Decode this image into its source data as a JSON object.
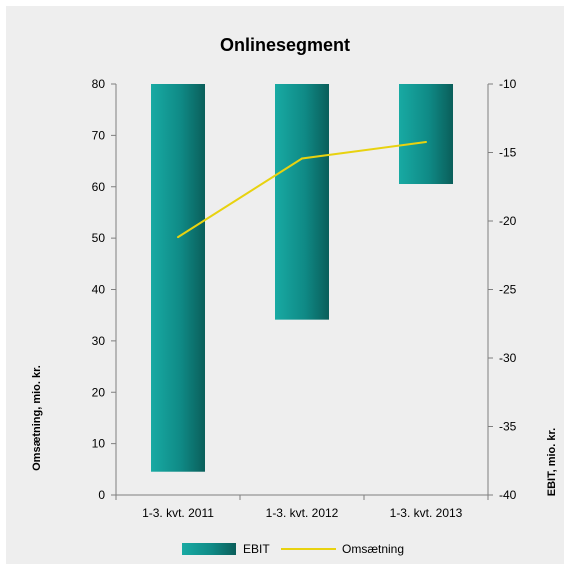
{
  "chart_data": {
    "type": "bar",
    "title": "Onlinesegment",
    "categories": [
      "1-3. kvt. 2011",
      "1-3. kvt. 2012",
      "1-3. kvt. 2013"
    ],
    "series": [
      {
        "name": "EBIT",
        "type": "bar",
        "axis": "right",
        "values": [
          -38.3,
          -27.2,
          -17.3
        ],
        "color": "#0d8e89"
      },
      {
        "name": "Omsætning",
        "type": "line",
        "axis": "left",
        "values": [
          50.2,
          65.5,
          68.7
        ],
        "color": "#e8d20f"
      }
    ],
    "y_left": {
      "label": "Omsætning, mio. kr.",
      "lim": [
        0,
        80
      ],
      "ticks": [
        "0",
        "10",
        "20",
        "30",
        "40",
        "50",
        "60",
        "70",
        "80"
      ]
    },
    "y_right": {
      "label": "EBIT, mio. kr.",
      "lim": [
        -40,
        -10
      ],
      "ticks": [
        "-40",
        "-35",
        "-30",
        "-25",
        "-20",
        "-15",
        "-10"
      ]
    },
    "grid": false,
    "legend_position": "bottom",
    "colors": {
      "background": "#eeeeee",
      "bar_light": "#18aaa3",
      "bar_dark": "#0a5e5a",
      "line": "#e8d20f"
    }
  }
}
